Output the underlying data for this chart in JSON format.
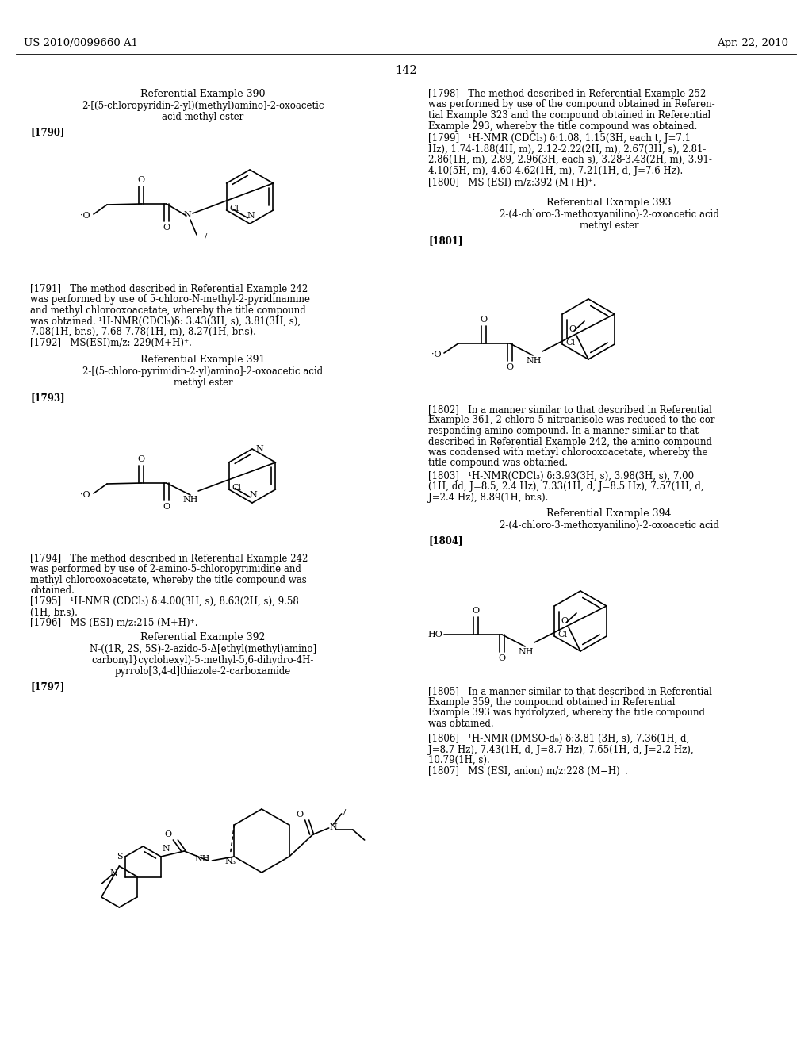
{
  "bg": "#ffffff",
  "header_left": "US 2010/0099660 A1",
  "header_right": "Apr. 22, 2010",
  "page_num": "142"
}
